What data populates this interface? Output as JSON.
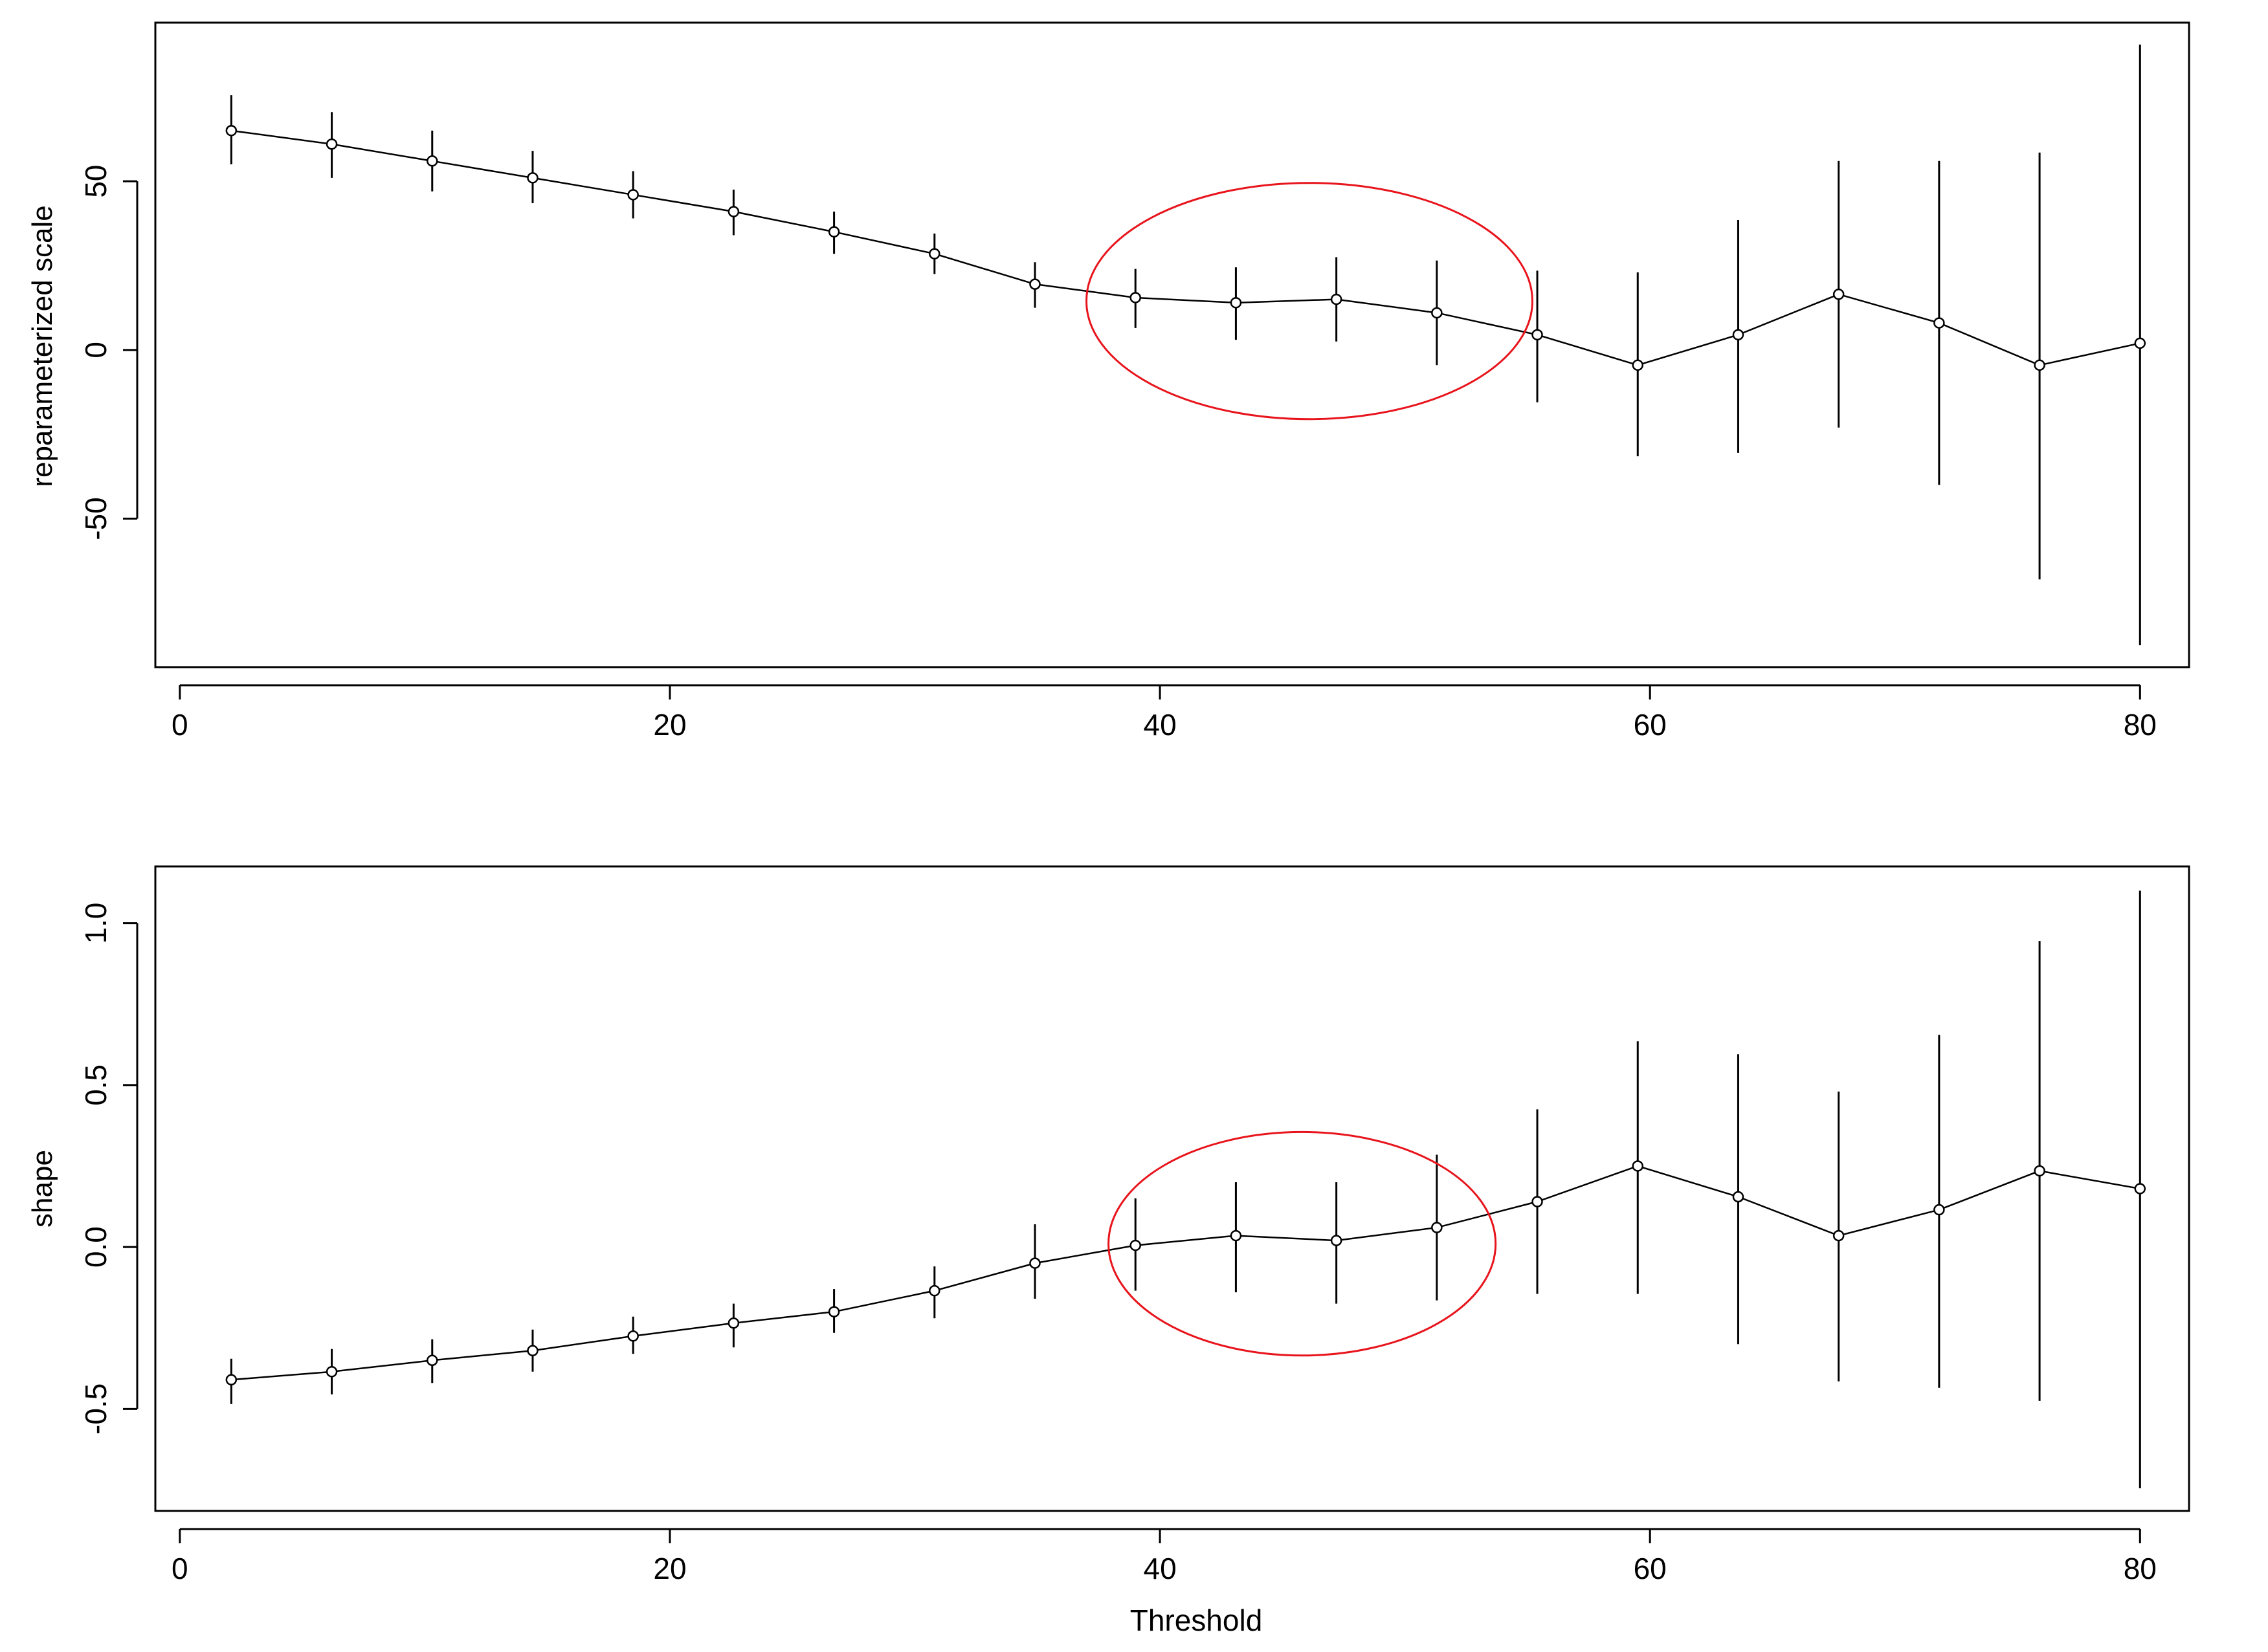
{
  "chart_data": [
    {
      "type": "line",
      "ylabel": "reparameterized scale",
      "xlabel": "",
      "xlim": [
        -1,
        82
      ],
      "ylim": [
        -94,
        97
      ],
      "x_ticks": [
        0,
        20,
        40,
        60,
        80
      ],
      "y_ticks": [
        -50,
        0,
        50
      ],
      "x_tick_labels": [
        "0",
        "20",
        "40",
        "60",
        "80"
      ],
      "y_tick_labels": [
        "-50",
        "0",
        "50"
      ],
      "grid": false,
      "series": [
        {
          "x": [
            2.1,
            6.2,
            10.3,
            14.4,
            18.5,
            22.6,
            26.7,
            30.8,
            34.9,
            39.0,
            43.1,
            47.2,
            51.3,
            55.4,
            59.5,
            63.6,
            67.7,
            71.8,
            75.9,
            80.0
          ],
          "y": [
            65,
            61,
            56,
            51,
            46,
            41,
            35,
            28.5,
            19.5,
            15.5,
            14,
            15,
            11,
            4.5,
            -4.5,
            4.5,
            16.5,
            8,
            -4.5,
            2
          ],
          "lower": [
            55,
            51,
            47,
            43.5,
            39,
            34,
            28.5,
            22.5,
            12.5,
            6.5,
            3,
            2.5,
            -4.5,
            -15.5,
            -31.5,
            -30.5,
            -23,
            -40,
            -68,
            -87.5
          ],
          "upper": [
            75.5,
            70.5,
            65,
            59,
            53,
            47.5,
            41,
            34.5,
            26,
            24,
            24.5,
            27.5,
            26.5,
            23.5,
            23,
            38.5,
            56,
            56,
            58.5,
            90.5
          ]
        }
      ],
      "annotation": {
        "shape": "ellipse",
        "color": "#e8141c",
        "cx": 46.1,
        "cy": 14.5,
        "rx": 9.1,
        "ry": 35
      }
    },
    {
      "type": "line",
      "ylabel": "shape",
      "xlabel": "Threshold",
      "xlim": [
        -1,
        82
      ],
      "ylim": [
        -0.815,
        1.175
      ],
      "x_ticks": [
        0,
        20,
        40,
        60,
        80
      ],
      "y_ticks": [
        -0.5,
        0,
        0.5,
        1
      ],
      "x_tick_labels": [
        "0",
        "20",
        "40",
        "60",
        "80"
      ],
      "y_tick_labels": [
        "-0.5",
        "0.0",
        "0.5",
        "1.0"
      ],
      "grid": false,
      "series": [
        {
          "x": [
            2.1,
            6.2,
            10.3,
            14.4,
            18.5,
            22.6,
            26.7,
            30.8,
            34.9,
            39.0,
            43.1,
            47.2,
            51.3,
            55.4,
            59.5,
            63.6,
            67.7,
            71.8,
            75.9,
            80.0
          ],
          "y": [
            -0.41,
            -0.385,
            -0.35,
            -0.32,
            -0.275,
            -0.235,
            -0.2,
            -0.135,
            -0.05,
            0.005,
            0.035,
            0.02,
            0.06,
            0.14,
            0.25,
            0.155,
            0.035,
            0.115,
            0.235,
            0.18
          ],
          "lower": [
            -0.485,
            -0.455,
            -0.42,
            -0.385,
            -0.33,
            -0.31,
            -0.265,
            -0.22,
            -0.16,
            -0.135,
            -0.14,
            -0.175,
            -0.165,
            -0.145,
            -0.145,
            -0.3,
            -0.415,
            -0.435,
            -0.475,
            -0.745
          ],
          "upper": [
            -0.345,
            -0.315,
            -0.285,
            -0.255,
            -0.215,
            -0.175,
            -0.13,
            -0.06,
            0.07,
            0.15,
            0.2,
            0.2,
            0.285,
            0.425,
            0.635,
            0.595,
            0.48,
            0.655,
            0.945,
            1.1
          ]
        }
      ],
      "annotation": {
        "shape": "ellipse",
        "color": "#e8141c",
        "cx": 45.8,
        "cy": 0.01,
        "rx": 7.9,
        "ry": 0.345
      }
    }
  ]
}
